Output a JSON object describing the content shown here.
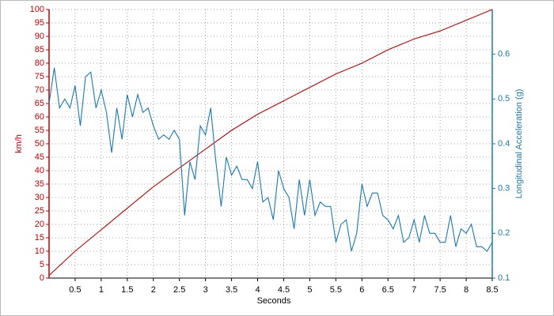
{
  "chart_data": {
    "type": "line",
    "xlabel": "Seconds",
    "ylabel": "km/h",
    "y2label": "Longitudinal Acceleration (g)",
    "xlim": [
      0,
      8.5
    ],
    "xticks": [
      0.5,
      1,
      1.5,
      2,
      2.5,
      3,
      3.5,
      4,
      4.5,
      5,
      5.5,
      6,
      6.5,
      7,
      7.5,
      8,
      8.5
    ],
    "ylim": [
      0,
      100
    ],
    "yticks": [
      0,
      5,
      10,
      15,
      20,
      25,
      30,
      35,
      40,
      45,
      50,
      55,
      60,
      65,
      70,
      75,
      80,
      85,
      90,
      95,
      100
    ],
    "y2lim": [
      0.1,
      0.7
    ],
    "y2ticks": [
      0.1,
      0.2,
      0.3,
      0.4,
      0.5,
      0.6
    ],
    "grid": true,
    "ycolor": "#c00000",
    "y2color": "#1a7ab0",
    "series": [
      {
        "color": "#c00000",
        "x": [
          0,
          0.5,
          1,
          1.5,
          2,
          2.5,
          3,
          3.5,
          4,
          4.5,
          5,
          5.5,
          6,
          6.5,
          7,
          7.5,
          8,
          8.5
        ],
        "values": [
          1,
          10,
          18,
          26,
          34,
          41,
          48,
          55,
          61,
          66,
          71,
          76,
          80,
          85,
          89,
          92,
          96,
          100
        ]
      },
      {
        "color": "#1a7ab0",
        "axis": "y2",
        "x": [
          0,
          0.1,
          0.2,
          0.3,
          0.4,
          0.5,
          0.6,
          0.7,
          0.8,
          0.9,
          1,
          1.1,
          1.2,
          1.3,
          1.4,
          1.5,
          1.6,
          1.7,
          1.8,
          1.9,
          2,
          2.1,
          2.2,
          2.3,
          2.4,
          2.5,
          2.6,
          2.7,
          2.8,
          2.9,
          3,
          3.1,
          3.2,
          3.3,
          3.4,
          3.5,
          3.6,
          3.7,
          3.8,
          3.9,
          4,
          4.1,
          4.2,
          4.3,
          4.4,
          4.5,
          4.6,
          4.7,
          4.8,
          4.9,
          5,
          5.1,
          5.2,
          5.3,
          5.4,
          5.5,
          5.6,
          5.7,
          5.8,
          5.9,
          6,
          6.1,
          6.2,
          6.3,
          6.4,
          6.5,
          6.6,
          6.7,
          6.8,
          6.9,
          7,
          7.1,
          7.2,
          7.3,
          7.4,
          7.5,
          7.6,
          7.7,
          7.8,
          7.9,
          8,
          8.1,
          8.2,
          8.3,
          8.4,
          8.5
        ],
        "values": [
          0.49,
          0.57,
          0.48,
          0.5,
          0.48,
          0.53,
          0.44,
          0.55,
          0.56,
          0.48,
          0.52,
          0.47,
          0.38,
          0.48,
          0.41,
          0.51,
          0.46,
          0.51,
          0.47,
          0.48,
          0.44,
          0.41,
          0.42,
          0.41,
          0.43,
          0.41,
          0.24,
          0.36,
          0.32,
          0.44,
          0.42,
          0.48,
          0.36,
          0.26,
          0.37,
          0.33,
          0.35,
          0.32,
          0.32,
          0.3,
          0.36,
          0.27,
          0.28,
          0.23,
          0.34,
          0.3,
          0.28,
          0.21,
          0.32,
          0.24,
          0.32,
          0.24,
          0.27,
          0.26,
          0.26,
          0.18,
          0.22,
          0.23,
          0.16,
          0.2,
          0.31,
          0.26,
          0.29,
          0.29,
          0.24,
          0.23,
          0.21,
          0.24,
          0.18,
          0.19,
          0.23,
          0.18,
          0.24,
          0.2,
          0.2,
          0.18,
          0.18,
          0.24,
          0.17,
          0.21,
          0.2,
          0.22,
          0.17,
          0.17,
          0.16,
          0.18
        ]
      }
    ]
  }
}
